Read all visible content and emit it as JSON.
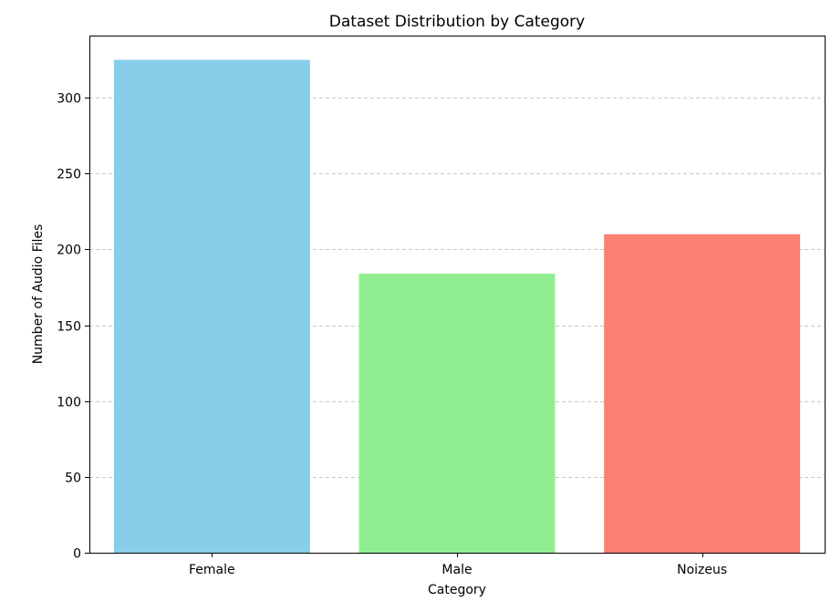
{
  "chart_data": {
    "type": "bar",
    "title": "Dataset Distribution by Category",
    "xlabel": "Category",
    "ylabel": "Number of Audio Files",
    "categories": [
      "Female",
      "Male",
      "Noizeus"
    ],
    "values": [
      325,
      184,
      210
    ],
    "colors": [
      "#87ceeb",
      "#90ee90",
      "#fa8072"
    ],
    "ylim": [
      0,
      341
    ],
    "yticks": [
      0,
      50,
      100,
      150,
      200,
      250,
      300
    ],
    "grid": "y-axis dashed",
    "legend": "none"
  }
}
